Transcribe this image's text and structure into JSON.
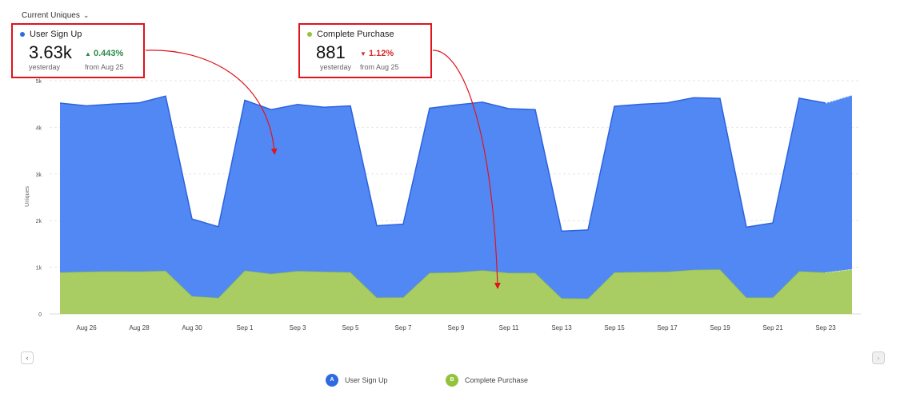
{
  "header": {
    "metric_selector": "Current Uniques"
  },
  "cards": [
    {
      "name": "User Sign Up",
      "value": "3.63k",
      "delta": "0.443%",
      "delta_direction": "up",
      "period": "yesterday",
      "comparison": "from Aug 25",
      "color": "#2f6be0"
    },
    {
      "name": "Complete Purchase",
      "value": "881",
      "delta": "1.12%",
      "delta_direction": "down",
      "period": "yesterday",
      "comparison": "from Aug 25",
      "color": "#93c23d"
    }
  ],
  "legend": [
    {
      "badge": "A",
      "label": "User Sign Up",
      "color": "#2f6be0"
    },
    {
      "badge": "B",
      "label": "Complete Purchase",
      "color": "#93c23d"
    }
  ],
  "nav": {
    "prev_icon": "chevron-left-icon",
    "next_icon": "chevron-right-icon"
  },
  "chart_data": {
    "type": "area",
    "stacked": true,
    "ylabel": "Uniques",
    "ylim": [
      0,
      5000
    ],
    "y_ticks": [
      "0",
      "1k",
      "2k",
      "3k",
      "4k",
      "5k"
    ],
    "grid": "horizontal dashed",
    "x_labels": [
      "Aug 26",
      "Aug 28",
      "Aug 30",
      "Sep 1",
      "Sep 3",
      "Sep 5",
      "Sep 7",
      "Sep 9",
      "Sep 11",
      "Sep 13",
      "Sep 15",
      "Sep 17",
      "Sep 19",
      "Sep 21",
      "Sep 23"
    ],
    "x": [
      "Aug 25",
      "Aug 26",
      "Aug 27",
      "Aug 28",
      "Aug 29",
      "Aug 30",
      "Aug 31",
      "Sep 1",
      "Sep 2",
      "Sep 3",
      "Sep 4",
      "Sep 5",
      "Sep 6",
      "Sep 7",
      "Sep 8",
      "Sep 9",
      "Sep 10",
      "Sep 11",
      "Sep 12",
      "Sep 13",
      "Sep 14",
      "Sep 15",
      "Sep 16",
      "Sep 17",
      "Sep 18",
      "Sep 19",
      "Sep 20",
      "Sep 21",
      "Sep 22",
      "Sep 23",
      "Sep 24"
    ],
    "series": [
      {
        "name": "Complete Purchase",
        "color": "#a9cd63",
        "line_color": "#93c23d",
        "values": [
          890,
          905,
          915,
          910,
          925,
          380,
          345,
          930,
          860,
          920,
          905,
          895,
          350,
          355,
          880,
          890,
          935,
          880,
          880,
          335,
          330,
          890,
          900,
          905,
          945,
          955,
          350,
          350,
          915,
          890,
          960
        ]
      },
      {
        "name": "User Sign Up",
        "color": "#5288f3",
        "line_color": "#2b62de",
        "values": [
          3630,
          3555,
          3585,
          3615,
          3745,
          1655,
          1525,
          3650,
          3520,
          3570,
          3525,
          3565,
          1540,
          1570,
          3530,
          3590,
          3605,
          3520,
          3500,
          1440,
          1470,
          3560,
          3595,
          3620,
          3690,
          3665,
          1510,
          1600,
          3710,
          3630,
          3730
        ]
      }
    ]
  }
}
